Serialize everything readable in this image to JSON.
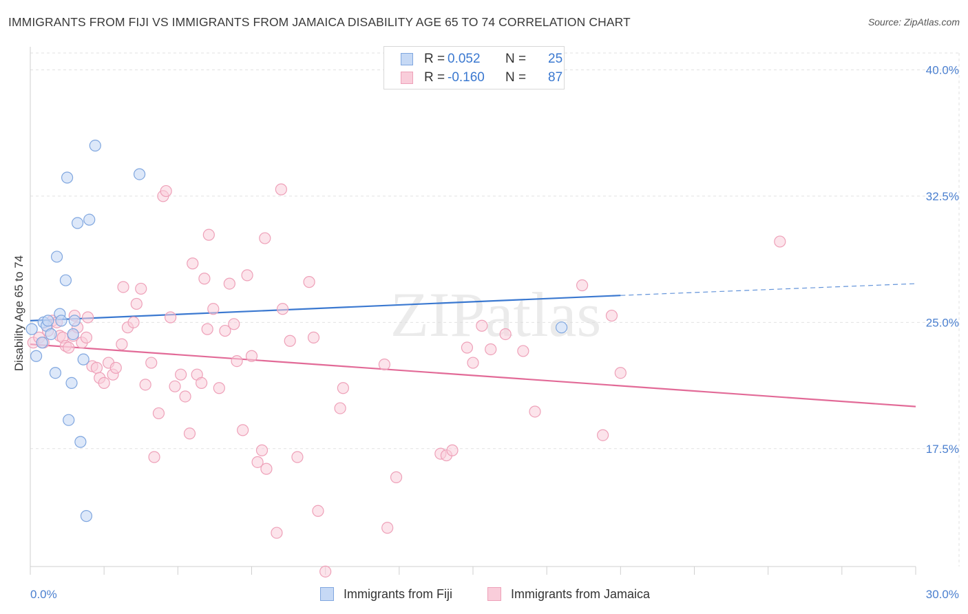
{
  "title": "IMMIGRANTS FROM FIJI VS IMMIGRANTS FROM JAMAICA DISABILITY AGE 65 TO 74 CORRELATION CHART",
  "source": "Source: ZipAtlas.com",
  "watermark": "ZIPatlas",
  "legend": {
    "fiji": {
      "r_label": "R =",
      "r_value": "0.052",
      "n_label": "N =",
      "n_value": "25"
    },
    "jamaica": {
      "r_label": "R =",
      "r_value": "-0.160",
      "n_label": "N =",
      "n_value": "87"
    }
  },
  "colors": {
    "fiji_fill": "#c6d9f5",
    "fiji_stroke": "#7fa6df",
    "fiji_line": "#3a78d0",
    "jamaica_fill": "#f9cdda",
    "jamaica_stroke": "#eea0b8",
    "jamaica_line": "#e26a97",
    "tick_label": "#4a7fcf",
    "grid": "#e2e2e2"
  },
  "chart_data": {
    "type": "scatter",
    "title": "IMMIGRANTS FROM FIJI VS IMMIGRANTS FROM JAMAICA DISABILITY AGE 65 TO 74 CORRELATION CHART",
    "xlabel": "",
    "ylabel": "Disability Age 65 to 74",
    "xlim": [
      0,
      30
    ],
    "ylim": [
      10.5,
      41.0
    ],
    "x_tick_labels": [
      "0.0%",
      "30.0%"
    ],
    "y_ticks": [
      17.5,
      25.0,
      32.5,
      40.0
    ],
    "y_tick_labels": [
      "17.5%",
      "25.0%",
      "32.5%",
      "40.0%"
    ],
    "legend_position": "top-center",
    "series": [
      {
        "name": "Immigrants from Fiji",
        "r": 0.052,
        "n": 25,
        "points": [
          [
            0.05,
            24.6
          ],
          [
            0.2,
            23.0
          ],
          [
            0.4,
            23.8
          ],
          [
            0.45,
            25.0
          ],
          [
            0.55,
            24.8
          ],
          [
            0.6,
            25.1
          ],
          [
            0.7,
            24.3
          ],
          [
            0.9,
            28.9
          ],
          [
            0.85,
            22.0
          ],
          [
            1.0,
            25.5
          ],
          [
            1.05,
            25.1
          ],
          [
            1.2,
            27.5
          ],
          [
            1.25,
            33.6
          ],
          [
            1.4,
            21.4
          ],
          [
            1.45,
            24.3
          ],
          [
            1.5,
            25.1
          ],
          [
            1.6,
            30.9
          ],
          [
            1.7,
            17.9
          ],
          [
            1.8,
            22.8
          ],
          [
            1.9,
            13.5
          ],
          [
            2.0,
            31.1
          ],
          [
            2.2,
            35.5
          ],
          [
            3.7,
            33.8
          ],
          [
            18.0,
            24.7
          ],
          [
            1.3,
            19.2
          ]
        ],
        "trend": {
          "x0": 0,
          "y0": 25.1,
          "x1": 20.0,
          "y1": 26.6,
          "dash_to_x": 30,
          "dash_to_y": 27.3
        }
      },
      {
        "name": "Immigrants from Jamaica",
        "r": -0.16,
        "n": 87,
        "points": [
          [
            0.1,
            23.8
          ],
          [
            0.3,
            24.1
          ],
          [
            0.45,
            23.8
          ],
          [
            0.6,
            24.5
          ],
          [
            0.75,
            25.1
          ],
          [
            0.9,
            25.0
          ],
          [
            1.0,
            24.2
          ],
          [
            1.1,
            24.1
          ],
          [
            1.2,
            23.6
          ],
          [
            1.3,
            23.5
          ],
          [
            1.45,
            24.2
          ],
          [
            1.5,
            25.4
          ],
          [
            1.6,
            24.7
          ],
          [
            1.75,
            23.8
          ],
          [
            1.95,
            25.3
          ],
          [
            1.9,
            24.1
          ],
          [
            2.1,
            22.4
          ],
          [
            2.25,
            22.3
          ],
          [
            2.35,
            21.7
          ],
          [
            2.5,
            21.4
          ],
          [
            2.65,
            22.6
          ],
          [
            2.8,
            21.9
          ],
          [
            2.9,
            22.3
          ],
          [
            3.1,
            23.7
          ],
          [
            3.15,
            27.1
          ],
          [
            3.3,
            24.7
          ],
          [
            3.5,
            25.0
          ],
          [
            3.6,
            26.1
          ],
          [
            3.75,
            27.0
          ],
          [
            3.9,
            21.3
          ],
          [
            4.1,
            22.6
          ],
          [
            4.2,
            17.0
          ],
          [
            4.35,
            19.6
          ],
          [
            4.5,
            32.5
          ],
          [
            4.6,
            32.8
          ],
          [
            4.75,
            25.3
          ],
          [
            4.9,
            21.2
          ],
          [
            5.1,
            21.9
          ],
          [
            5.25,
            20.6
          ],
          [
            5.4,
            18.4
          ],
          [
            5.5,
            28.5
          ],
          [
            5.65,
            21.9
          ],
          [
            5.8,
            21.4
          ],
          [
            5.9,
            27.6
          ],
          [
            6.0,
            24.6
          ],
          [
            6.05,
            30.2
          ],
          [
            6.2,
            25.8
          ],
          [
            6.4,
            21.1
          ],
          [
            6.6,
            24.5
          ],
          [
            6.75,
            27.3
          ],
          [
            6.9,
            24.9
          ],
          [
            7.0,
            22.7
          ],
          [
            7.2,
            18.6
          ],
          [
            7.35,
            27.8
          ],
          [
            7.5,
            23.0
          ],
          [
            7.7,
            16.7
          ],
          [
            7.85,
            17.4
          ],
          [
            7.95,
            30.0
          ],
          [
            8.0,
            16.3
          ],
          [
            8.35,
            12.5
          ],
          [
            8.5,
            32.9
          ],
          [
            8.55,
            25.8
          ],
          [
            8.8,
            23.9
          ],
          [
            9.05,
            17.0
          ],
          [
            9.45,
            27.4
          ],
          [
            9.6,
            24.1
          ],
          [
            9.75,
            13.8
          ],
          [
            10.0,
            10.2
          ],
          [
            10.5,
            19.9
          ],
          [
            10.6,
            21.1
          ],
          [
            12.0,
            22.5
          ],
          [
            12.1,
            12.8
          ],
          [
            12.4,
            15.8
          ],
          [
            13.9,
            17.2
          ],
          [
            14.1,
            17.1
          ],
          [
            14.3,
            17.4
          ],
          [
            14.8,
            23.5
          ],
          [
            15.0,
            22.6
          ],
          [
            15.3,
            24.8
          ],
          [
            15.6,
            23.4
          ],
          [
            16.1,
            24.3
          ],
          [
            16.7,
            23.3
          ],
          [
            17.1,
            19.7
          ],
          [
            18.7,
            27.2
          ],
          [
            19.4,
            18.3
          ],
          [
            19.7,
            25.4
          ],
          [
            20.0,
            22.0
          ],
          [
            25.4,
            29.8
          ]
        ],
        "trend": {
          "x0": 0,
          "y0": 23.7,
          "x1": 30,
          "y1": 20.0
        }
      }
    ]
  },
  "bottom_legend": {
    "fiji_label": "Immigrants from Fiji",
    "jamaica_label": "Immigrants from Jamaica"
  }
}
